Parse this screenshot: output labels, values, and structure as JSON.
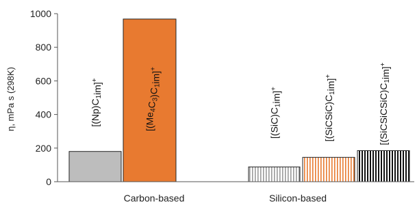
{
  "chart_data": {
    "type": "bar",
    "ylabel": "η, mPa s (298K)",
    "ylim": [
      0,
      1000
    ],
    "yticks": [
      0,
      200,
      400,
      600,
      800,
      1000
    ],
    "groups": [
      "Carbon-based",
      "Silicon-based"
    ],
    "bars": [
      {
        "group": "Carbon-based",
        "value": 180,
        "label": "[(Np)C1im]+",
        "color": "#bdbdbd",
        "fill": "solid"
      },
      {
        "group": "Carbon-based",
        "value": 968,
        "label": "[(Me4C3)C1im]+",
        "color": "#e87a30",
        "fill": "solid"
      },
      {
        "group": "Silicon-based",
        "value": 88,
        "label": "[(SiC)C1im]+",
        "color": "#9a9a9a",
        "fill": "vertical-stripes"
      },
      {
        "group": "Silicon-based",
        "value": 145,
        "label": "[(SiCSiC)C1im]+",
        "color": "#e87a30",
        "fill": "vertical-stripes"
      },
      {
        "group": "Silicon-based",
        "value": 185,
        "label": "[(SiCSiCSiC)C1im]+",
        "color": "#111111",
        "fill": "vertical-stripes"
      }
    ]
  }
}
